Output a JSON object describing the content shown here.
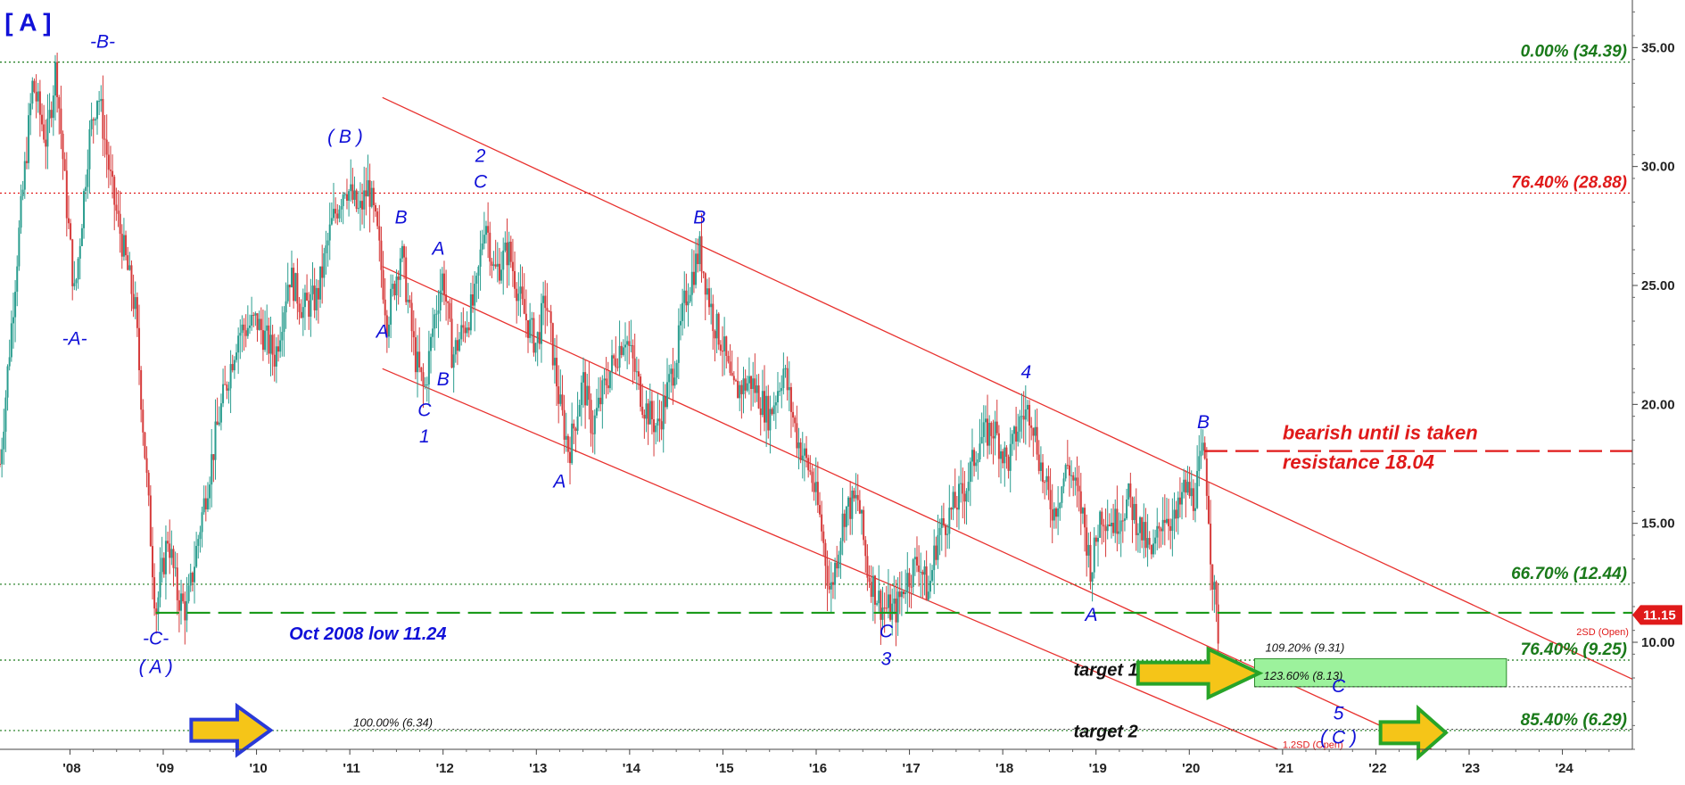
{
  "chart_data": {
    "type": "candlestick",
    "title": "",
    "xlabel": "",
    "ylabel": "",
    "x_range": [
      2007.25,
      2024.75
    ],
    "ylim": [
      5.5,
      37.0
    ],
    "x_ticks": [
      {
        "label": "'08",
        "value": 2008.0
      },
      {
        "label": "'09",
        "value": 2009.0
      },
      {
        "label": "'10",
        "value": 2010.0
      },
      {
        "label": "'11",
        "value": 2011.0
      },
      {
        "label": "'12",
        "value": 2012.0
      },
      {
        "label": "'13",
        "value": 2013.0
      },
      {
        "label": "'14",
        "value": 2014.0
      },
      {
        "label": "'15",
        "value": 2015.0
      },
      {
        "label": "'16",
        "value": 2016.0
      },
      {
        "label": "'17",
        "value": 2017.0
      },
      {
        "label": "'18",
        "value": 2018.0
      },
      {
        "label": "'19",
        "value": 2019.0
      },
      {
        "label": "'20",
        "value": 2020.0
      },
      {
        "label": "'21",
        "value": 2021.0
      },
      {
        "label": "'22",
        "value": 2022.0
      },
      {
        "label": "'23",
        "value": 2023.0
      },
      {
        "label": "'24",
        "value": 2024.0
      }
    ],
    "y_ticks": [
      {
        "label": "10.00",
        "value": 10
      },
      {
        "label": "15.00",
        "value": 15
      },
      {
        "label": "20.00",
        "value": 20
      },
      {
        "label": "25.00",
        "value": 25
      },
      {
        "label": "30.00",
        "value": 30
      },
      {
        "label": "35.00",
        "value": 35
      }
    ],
    "price_path": [
      [
        2007.25,
        17.5
      ],
      [
        2007.45,
        27.0
      ],
      [
        2007.6,
        33.5
      ],
      [
        2007.75,
        31.0
      ],
      [
        2007.85,
        34.3
      ],
      [
        2007.95,
        29.0
      ],
      [
        2008.05,
        24.5
      ],
      [
        2008.2,
        31.0
      ],
      [
        2008.3,
        33.2
      ],
      [
        2008.45,
        29.0
      ],
      [
        2008.55,
        27.0
      ],
      [
        2008.7,
        24.0
      ],
      [
        2008.82,
        17.0
      ],
      [
        2008.92,
        11.24
      ],
      [
        2009.05,
        14.5
      ],
      [
        2009.15,
        12.0
      ],
      [
        2009.25,
        11.3
      ],
      [
        2009.4,
        15.0
      ],
      [
        2009.6,
        19.5
      ],
      [
        2009.8,
        23.0
      ],
      [
        2010.0,
        23.5
      ],
      [
        2010.2,
        22.0
      ],
      [
        2010.35,
        25.5
      ],
      [
        2010.5,
        24.0
      ],
      [
        2010.65,
        24.5
      ],
      [
        2010.8,
        27.5
      ],
      [
        2010.95,
        29.3
      ],
      [
        2011.1,
        28.0
      ],
      [
        2011.2,
        29.2
      ],
      [
        2011.3,
        27.0
      ],
      [
        2011.4,
        23.5
      ],
      [
        2011.55,
        26.5
      ],
      [
        2011.7,
        22.0
      ],
      [
        2011.8,
        20.5
      ],
      [
        2011.9,
        23.5
      ],
      [
        2012.0,
        25.5
      ],
      [
        2012.1,
        22.0
      ],
      [
        2012.2,
        23.0
      ],
      [
        2012.35,
        24.5
      ],
      [
        2012.45,
        28.0
      ],
      [
        2012.55,
        25.5
      ],
      [
        2012.7,
        26.5
      ],
      [
        2012.85,
        24.0
      ],
      [
        2013.0,
        22.5
      ],
      [
        2013.1,
        24.5
      ],
      [
        2013.25,
        20.0
      ],
      [
        2013.35,
        18.0
      ],
      [
        2013.5,
        21.0
      ],
      [
        2013.6,
        19.0
      ],
      [
        2013.75,
        21.0
      ],
      [
        2013.95,
        23.0
      ],
      [
        2014.15,
        20.0
      ],
      [
        2014.3,
        19.0
      ],
      [
        2014.5,
        22.0
      ],
      [
        2014.6,
        24.5
      ],
      [
        2014.75,
        26.5
      ],
      [
        2014.9,
        23.5
      ],
      [
        2015.0,
        22.5
      ],
      [
        2015.1,
        20.5
      ],
      [
        2015.3,
        21.0
      ],
      [
        2015.5,
        19.5
      ],
      [
        2015.65,
        21.5
      ],
      [
        2015.8,
        18.5
      ],
      [
        2015.95,
        17.0
      ],
      [
        2016.05,
        15.0
      ],
      [
        2016.15,
        12.0
      ],
      [
        2016.3,
        15.5
      ],
      [
        2016.45,
        16.0
      ],
      [
        2016.55,
        13.0
      ],
      [
        2016.7,
        11.5
      ],
      [
        2016.85,
        11.3
      ],
      [
        2016.95,
        12.5
      ],
      [
        2017.1,
        13.5
      ],
      [
        2017.2,
        12.0
      ],
      [
        2017.3,
        14.5
      ],
      [
        2017.45,
        15.5
      ],
      [
        2017.6,
        16.5
      ],
      [
        2017.75,
        18.5
      ],
      [
        2017.9,
        19.0
      ],
      [
        2018.05,
        17.5
      ],
      [
        2018.2,
        19.5
      ],
      [
        2018.3,
        19.8
      ],
      [
        2018.45,
        16.5
      ],
      [
        2018.55,
        15.5
      ],
      [
        2018.7,
        17.5
      ],
      [
        2018.85,
        15.5
      ],
      [
        2018.95,
        13.0
      ],
      [
        2019.05,
        15.5
      ],
      [
        2019.2,
        15.0
      ],
      [
        2019.35,
        16.0
      ],
      [
        2019.5,
        14.5
      ],
      [
        2019.6,
        13.5
      ],
      [
        2019.72,
        15.5
      ],
      [
        2019.85,
        15.0
      ],
      [
        2019.95,
        16.5
      ],
      [
        2020.05,
        16.0
      ],
      [
        2020.12,
        17.5
      ],
      [
        2020.16,
        18.04
      ],
      [
        2020.2,
        16.0
      ],
      [
        2020.24,
        13.0
      ],
      [
        2020.28,
        11.5
      ],
      [
        2020.31,
        10.4
      ],
      [
        2020.33,
        11.15
      ]
    ],
    "last_price": "11.15",
    "levels": [
      {
        "label": "0.00% (34.39)",
        "value": 34.39,
        "color": "#1a7a1a",
        "style": "dotted"
      },
      {
        "label": "76.40% (28.88)",
        "value": 28.88,
        "color": "#e01a1a",
        "style": "dotted"
      },
      {
        "label": "66.70% (12.44)",
        "value": 12.44,
        "color": "#1a7a1a",
        "style": "dotted"
      },
      {
        "label": "76.40% (9.25)",
        "value": 9.25,
        "color": "#1a7a1a",
        "style": "dotted"
      },
      {
        "label": "85.40% (6.29)",
        "value": 6.29,
        "color": "#1a7a1a",
        "style": "dotted"
      }
    ],
    "support_line": {
      "label": "Oct 2008 low 11.24",
      "value": 11.24,
      "color": "#1a9a1a"
    },
    "resistance_line": {
      "label": "resistance 18.04",
      "note": "bearish until is taken",
      "value": 18.04,
      "x_start": 2020.16,
      "color": "#e01a1a"
    },
    "channels": [
      {
        "x1": 2011.35,
        "y1": 32.9,
        "x2": 2024.75,
        "y2": 8.45
      },
      {
        "x1": 2011.35,
        "y1": 25.8,
        "x2": 2022.6,
        "y2": 5.5
      },
      {
        "x1": 2011.35,
        "y1": 21.5,
        "x2": 2020.95,
        "y2": 5.5
      }
    ],
    "channel_labels": [
      {
        "text": "2SD (Open)",
        "x": 2024.15,
        "y": 10.3
      },
      {
        "text": "1.2SD (Open)",
        "x": 2021.0,
        "y": 5.55
      }
    ],
    "target_zone": {
      "x1": 2020.7,
      "x2": 2023.4,
      "y_top": 9.31,
      "y_bottom": 8.13,
      "labels": [
        "109.20% (9.31)",
        "123.60% (8.13)"
      ]
    },
    "extension_level": {
      "label": "100.00% (6.34)",
      "value": 6.34,
      "x_start": 2011.0
    },
    "targets": [
      {
        "label": "target 1",
        "x": 2019.45,
        "y": 8.6
      },
      {
        "label": "target 2",
        "x": 2019.45,
        "y": 6.0
      }
    ],
    "wave_labels": [
      {
        "text": "[ A ]",
        "x": 2007.55,
        "y": 35.7,
        "big": true
      },
      {
        "text": "-B-",
        "x": 2008.35,
        "y": 35.0
      },
      {
        "text": "-A-",
        "x": 2008.05,
        "y": 22.5
      },
      {
        "text": "-C-",
        "x": 2008.92,
        "y": 9.9
      },
      {
        "text": "( A )",
        "x": 2008.92,
        "y": 8.7
      },
      {
        "text": "( B )",
        "x": 2010.95,
        "y": 31.0
      },
      {
        "text": "2",
        "x": 2012.4,
        "y": 30.2
      },
      {
        "text": "C",
        "x": 2012.4,
        "y": 29.1
      },
      {
        "text": "B",
        "x": 2011.55,
        "y": 27.6
      },
      {
        "text": "A",
        "x": 2011.95,
        "y": 26.3
      },
      {
        "text": "A",
        "x": 2011.35,
        "y": 22.8
      },
      {
        "text": "B",
        "x": 2012.0,
        "y": 20.8
      },
      {
        "text": "C",
        "x": 2011.8,
        "y": 19.5
      },
      {
        "text": "1",
        "x": 2011.8,
        "y": 18.4
      },
      {
        "text": "B",
        "x": 2014.75,
        "y": 27.6
      },
      {
        "text": "A",
        "x": 2013.25,
        "y": 16.5
      },
      {
        "text": "4",
        "x": 2018.25,
        "y": 21.1
      },
      {
        "text": "B",
        "x": 2020.15,
        "y": 19.0
      },
      {
        "text": "A",
        "x": 2018.95,
        "y": 10.9
      },
      {
        "text": "C",
        "x": 2016.75,
        "y": 10.2
      },
      {
        "text": "3",
        "x": 2016.75,
        "y": 9.05
      },
      {
        "text": "C",
        "x": 2021.6,
        "y": 7.9
      },
      {
        "text": "5",
        "x": 2021.6,
        "y": 6.75
      },
      {
        "text": "( C )",
        "x": 2021.6,
        "y": 5.75
      }
    ],
    "arrows": [
      {
        "x_tail": 2019.45,
        "x_head": 2020.75,
        "y": 8.7,
        "fill": "#f5c518",
        "stroke": "#28a428"
      },
      {
        "x_tail": 2009.3,
        "x_head": 2010.15,
        "y": 6.3,
        "fill": "#f5c518",
        "stroke": "#2a3ad8"
      },
      {
        "x_tail": 2022.05,
        "x_head": 2022.75,
        "y": 6.2,
        "fill": "#f5c518",
        "stroke": "#28a428"
      }
    ],
    "grid": false,
    "legend": "none"
  }
}
